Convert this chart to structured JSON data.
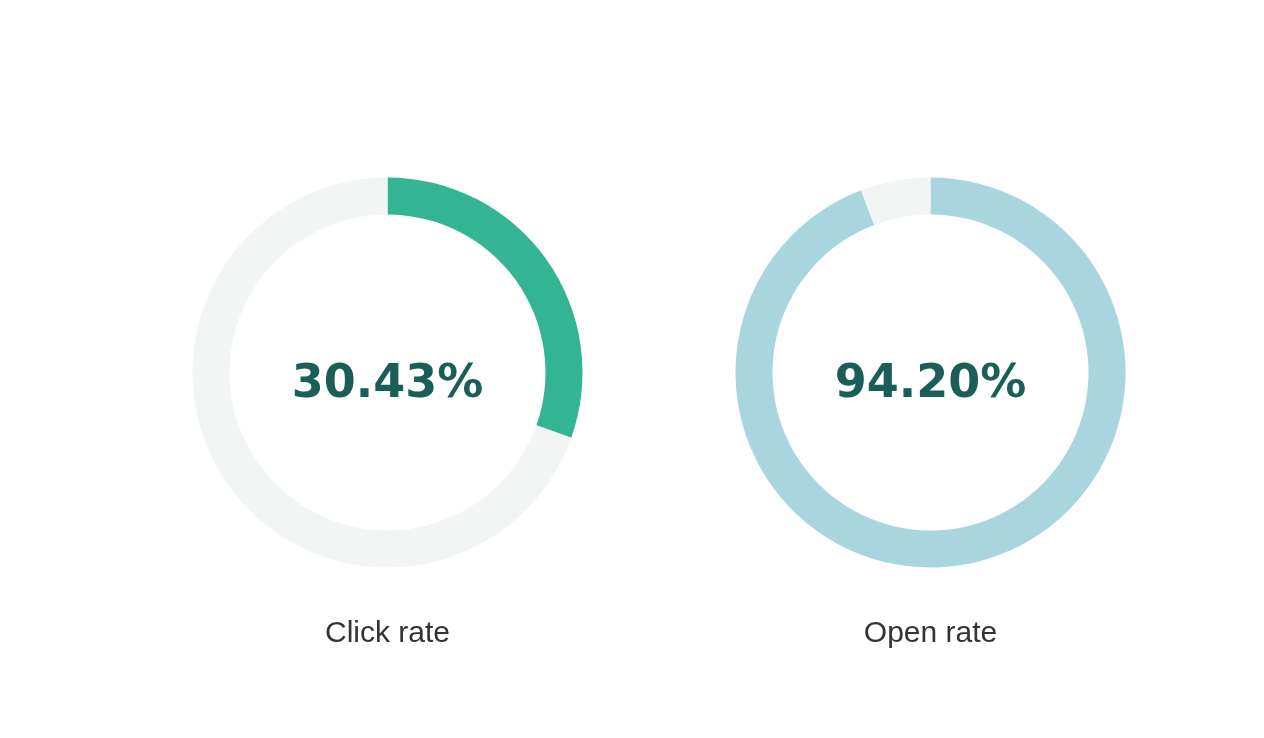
{
  "chart_data": [
    {
      "type": "donut",
      "title": "Click rate",
      "categories": [
        null,
        null
      ],
      "values": [
        30.43,
        69.57
      ],
      "colors": [
        "#33b594",
        "#f1f5f4"
      ],
      "annotations": [
        "30.43%"
      ]
    },
    {
      "type": "donut",
      "title": "Open rate",
      "categories": [
        null,
        null
      ],
      "values": [
        94.2,
        5.8
      ],
      "colors": [
        "#a9d5de",
        "#f1f5f4"
      ],
      "annotations": [
        "94.20%"
      ]
    }
  ]
}
